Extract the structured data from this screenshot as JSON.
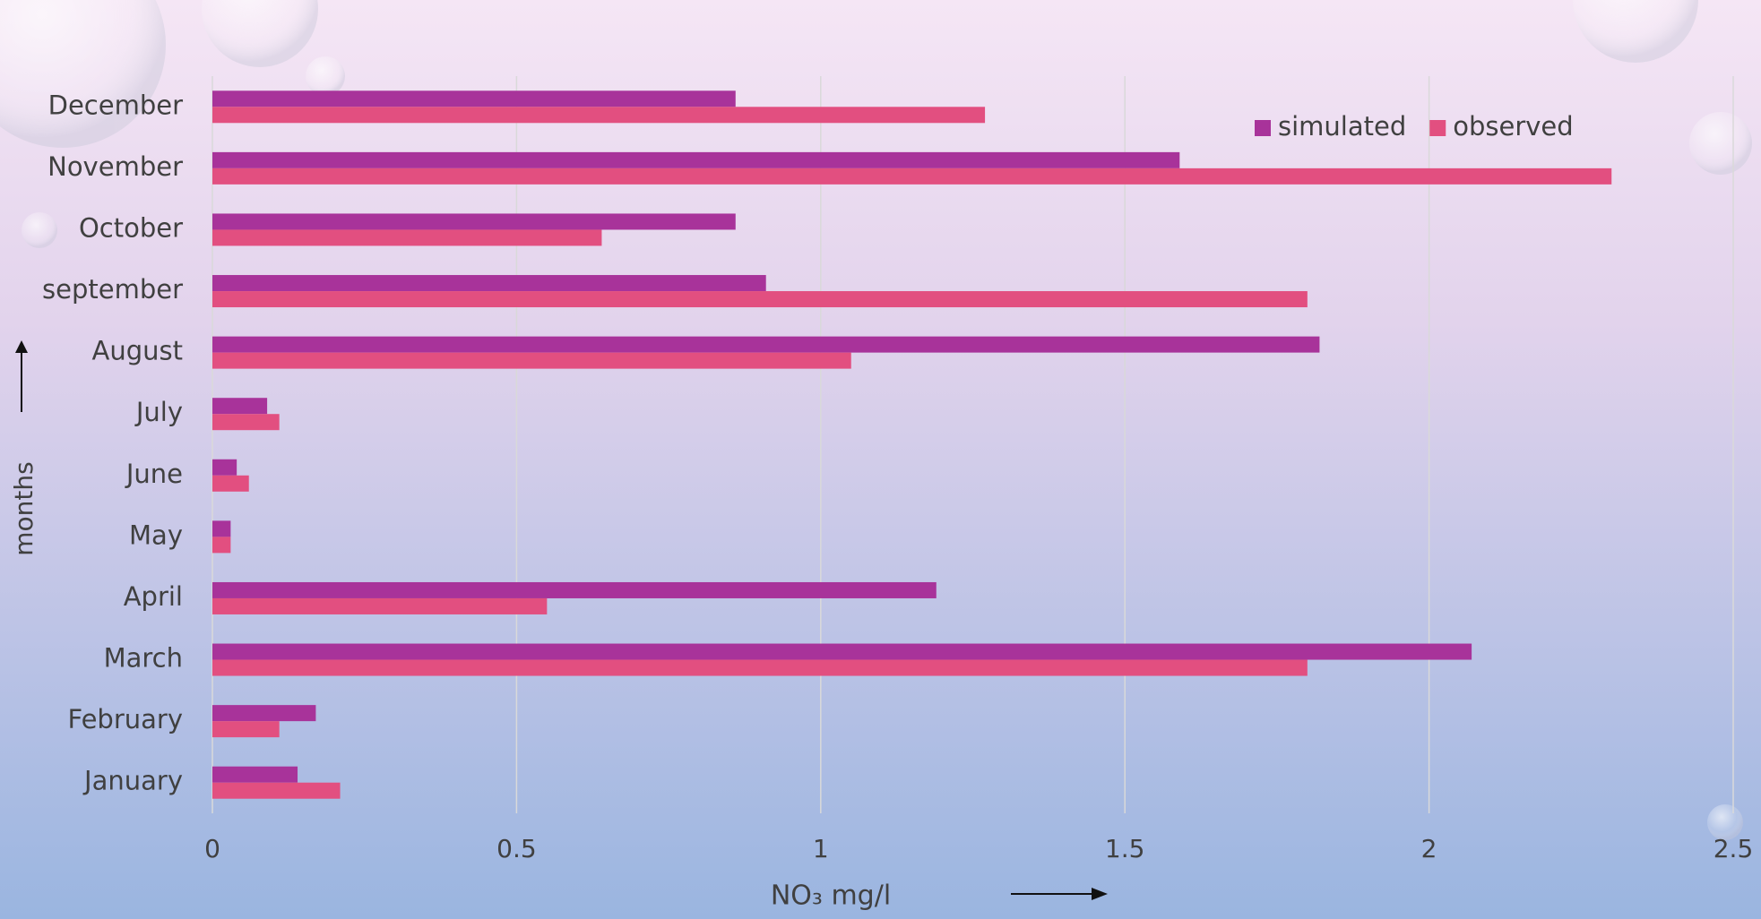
{
  "chart_data": {
    "type": "hbar",
    "x_label": "NO₃ mg/l",
    "y_label": "months",
    "categories": [
      "January",
      "February",
      "March",
      "April",
      "May",
      "June",
      "July",
      "August",
      "september",
      "October",
      "November",
      "December"
    ],
    "series": [
      {
        "name": "simulated",
        "color": "#a8339a",
        "values": [
          0.14,
          0.17,
          2.07,
          1.19,
          0.03,
          0.04,
          0.09,
          1.82,
          0.91,
          0.86,
          1.59,
          0.86
        ]
      },
      {
        "name": "observed",
        "color": "#e24f80",
        "values": [
          0.21,
          0.11,
          1.8,
          0.55,
          0.03,
          0.06,
          0.11,
          1.05,
          1.8,
          0.64,
          2.3,
          1.27
        ]
      }
    ],
    "xlim": [
      0,
      2.5
    ],
    "xticks": [
      0,
      0.5,
      1,
      1.5,
      2,
      2.5
    ],
    "grid": true,
    "legend": "top-right"
  }
}
